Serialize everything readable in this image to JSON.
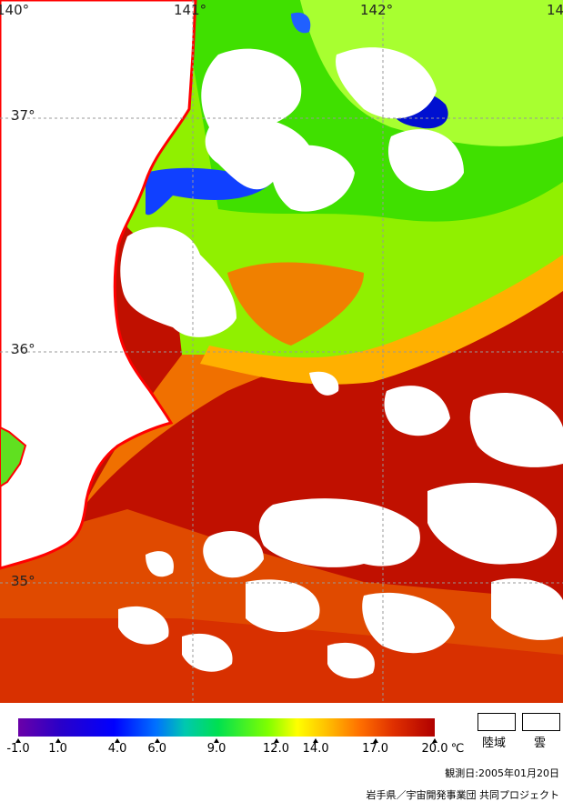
{
  "axes": {
    "lon_labels": [
      "140°",
      "141°",
      "142°",
      "14"
    ],
    "lat_labels": [
      "37°",
      "36°",
      "35°"
    ]
  },
  "colorbar": {
    "ticks": [
      {
        "value": -1.0,
        "label": "-1.0"
      },
      {
        "value": 1.0,
        "label": "1.0"
      },
      {
        "value": 4.0,
        "label": "4.0"
      },
      {
        "value": 6.0,
        "label": "6.0"
      },
      {
        "value": 9.0,
        "label": "9.0"
      },
      {
        "value": 12.0,
        "label": "12.0"
      },
      {
        "value": 14.0,
        "label": "14.0"
      },
      {
        "value": 17.0,
        "label": "17.0"
      },
      {
        "value": 20.0,
        "label": "20.0"
      }
    ],
    "unit": "℃",
    "min": -1.0,
    "max": 20.0
  },
  "legend": {
    "land": "陸域",
    "cloud": "雲"
  },
  "footer": {
    "obs_date": "観測日:2005年01月20日",
    "credit": "岩手県／宇宙開発事業団 共同プロジェクト"
  },
  "colors": {
    "coast": "#ff0000",
    "grid": "#999999",
    "land_cloud": "#ffffff"
  }
}
